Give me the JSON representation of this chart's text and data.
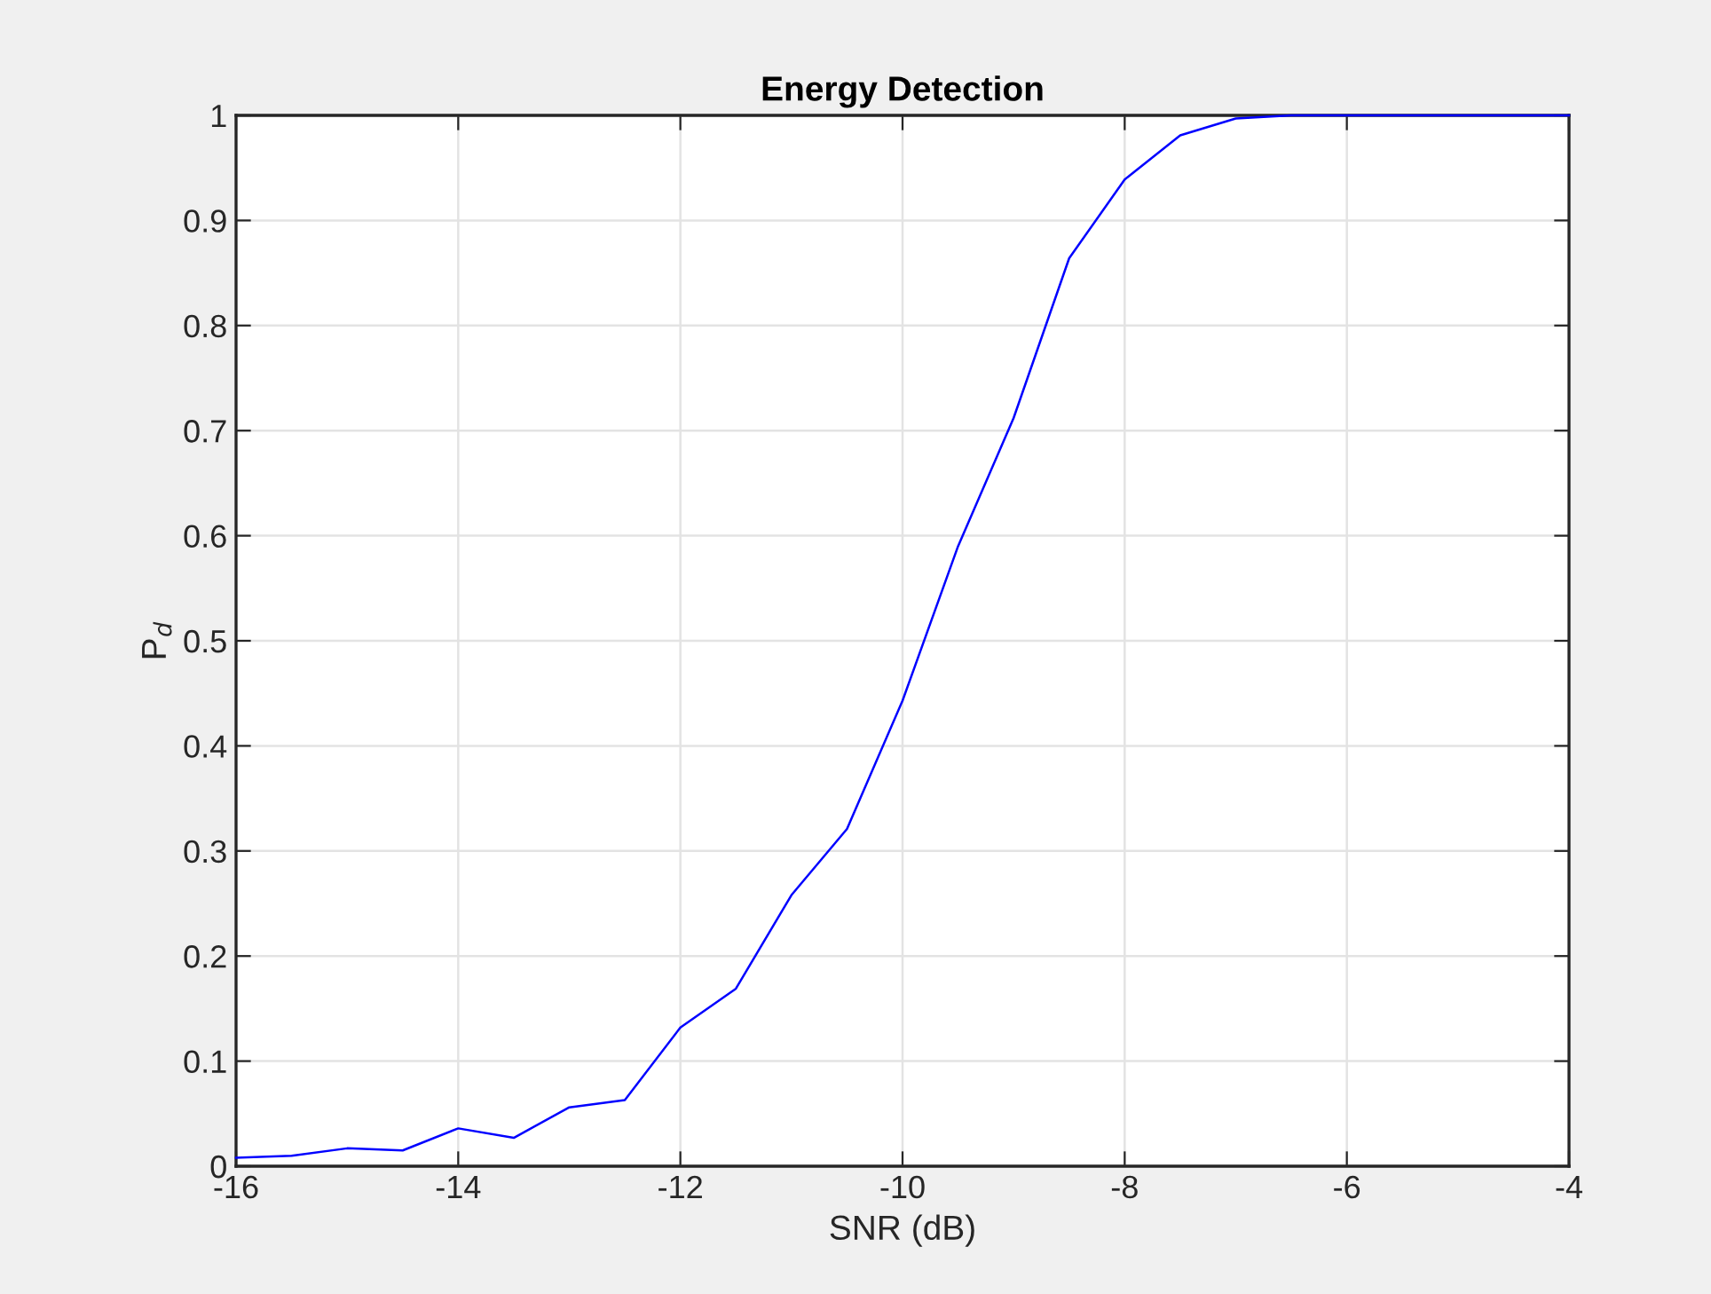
{
  "chart_data": {
    "type": "line",
    "title": "Energy Detection",
    "xlabel": "SNR (dB)",
    "ylabel": "P$_{d}$",
    "x": [
      -16,
      -15.5,
      -15,
      -14.5,
      -14,
      -13.5,
      -13,
      -12.5,
      -12,
      -11.5,
      -11,
      -10.5,
      -10,
      -9.5,
      -9,
      -8.5,
      -8,
      -7.5,
      -7,
      -6.5,
      -6,
      -5.5,
      -5,
      -4.5,
      -4
    ],
    "series": [
      {
        "color": "#0000ff",
        "values": [
          0.008,
          0.01,
          0.017,
          0.015,
          0.036,
          0.027,
          0.056,
          0.063,
          0.132,
          0.169,
          0.258,
          0.321,
          0.443,
          0.59,
          0.712,
          0.864,
          0.939,
          0.981,
          0.997,
          1,
          1,
          1,
          1,
          1,
          1
        ]
      }
    ],
    "xlim": [
      -16,
      -4
    ],
    "xticks": [
      -16,
      -14,
      -12,
      -10,
      -8,
      -6,
      -4
    ],
    "ylim": [
      0,
      1
    ],
    "yticks": [
      0,
      0.1,
      0.2,
      0.3,
      0.4,
      0.5,
      0.6,
      0.7,
      0.8,
      0.9,
      1
    ],
    "grid": true,
    "marker": "none",
    "line_style": "solid"
  }
}
